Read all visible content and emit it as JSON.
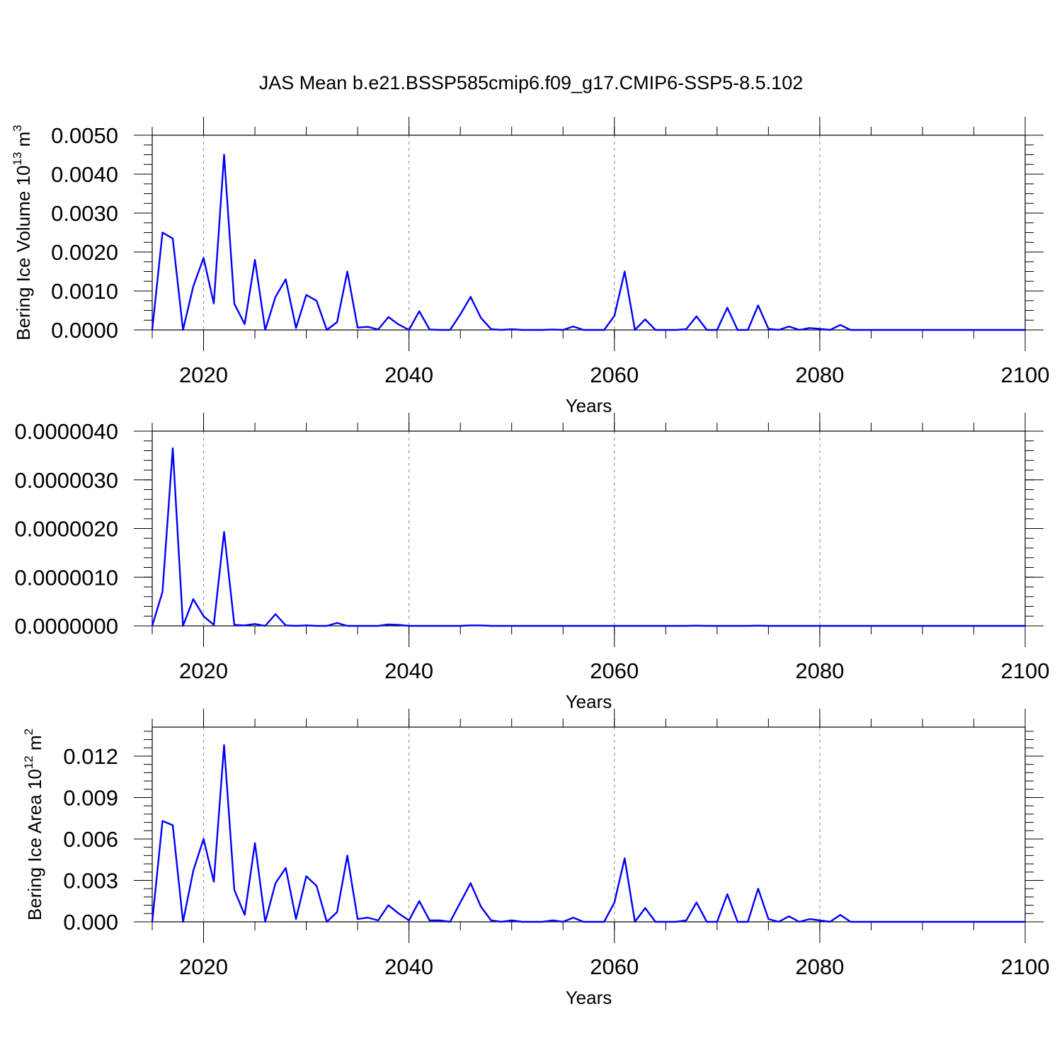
{
  "figure": {
    "title": "JAS Mean b.e21.BSSP585cmip6.f09_g17.CMIP6-SSP5-8.5.102"
  },
  "chart_data": [
    {
      "type": "line",
      "title": "JAS Mean b.e21.BSSP585cmip6.f09_g17.CMIP6-SSP5-8.5.102",
      "xlabel": "Years",
      "ylabel": "Bering Ice Volume 10",
      "ylabel_exp": "13",
      "ylabel_unit": "m",
      "ylabel_unit_exp": "3",
      "xlim": [
        2015,
        2100
      ],
      "ylim": [
        0,
        0.005
      ],
      "x_ticks": [
        2020,
        2040,
        2060,
        2080,
        2100
      ],
      "y_ticks": [
        0,
        0.001,
        0.002,
        0.003,
        0.004,
        0.005
      ],
      "y_tick_labels": [
        "0.0000",
        "0.0010",
        "0.0020",
        "0.0030",
        "0.0040",
        "0.0050"
      ],
      "grid": "vertical dashed lines at major x ticks",
      "line_color": "#0000ff",
      "x": [
        2015,
        2016,
        2017,
        2018,
        2019,
        2020,
        2021,
        2022,
        2023,
        2024,
        2025,
        2026,
        2027,
        2028,
        2029,
        2030,
        2031,
        2032,
        2033,
        2034,
        2035,
        2036,
        2037,
        2038,
        2039,
        2040,
        2041,
        2042,
        2043,
        2044,
        2045,
        2046,
        2047,
        2048,
        2049,
        2050,
        2051,
        2052,
        2053,
        2054,
        2055,
        2056,
        2057,
        2058,
        2059,
        2060,
        2061,
        2062,
        2063,
        2064,
        2065,
        2066,
        2067,
        2068,
        2069,
        2070,
        2071,
        2072,
        2073,
        2074,
        2075,
        2076,
        2077,
        2078,
        2079,
        2080,
        2081,
        2082,
        2083,
        2084,
        2085,
        2086,
        2087,
        2088,
        2089,
        2090,
        2091,
        2092,
        2093,
        2094,
        2095,
        2096,
        2097,
        2098,
        2099,
        2100
      ],
      "values": [
        0,
        0.0025,
        0.00235,
        0,
        0.00112,
        0.00185,
        0.00068,
        0.0045,
        0.00067,
        0.00015,
        0.0018,
        0,
        0.00085,
        0.0013,
        5e-05,
        0.0009,
        0.00075,
        0,
        0.0002,
        0.0015,
        6e-05,
        8e-05,
        1e-05,
        0.00033,
        0.00014,
        0,
        0.00048,
        1e-05,
        0,
        0,
        0.0004,
        0.00085,
        0.00031,
        2e-05,
        0,
        2e-05,
        0,
        0,
        0,
        1e-05,
        0,
        9e-05,
        0,
        0,
        0,
        0.00036,
        0.0015,
        0,
        0.00027,
        0,
        0,
        0,
        2e-05,
        0.00035,
        0,
        0,
        0.00057,
        0,
        0,
        0.00063,
        3e-05,
        0,
        9e-05,
        0,
        5e-05,
        3e-05,
        0,
        0.00013,
        0,
        0,
        0,
        0,
        0,
        0,
        0,
        0,
        0,
        0,
        0,
        0,
        0,
        0,
        0,
        0,
        0,
        0
      ]
    },
    {
      "type": "line",
      "xlabel": "Years",
      "xlim": [
        2015,
        2100
      ],
      "ylim": [
        0,
        4e-06
      ],
      "x_ticks": [
        2020,
        2040,
        2060,
        2080,
        2100
      ],
      "y_ticks": [
        0,
        1e-06,
        2e-06,
        3e-06,
        4e-06
      ],
      "y_tick_labels": [
        "0.0000000",
        "0.0000010",
        "0.0000020",
        "0.0000030",
        "0.0000040"
      ],
      "grid": "vertical dashed lines at major x ticks",
      "line_color": "#0000ff",
      "x": [
        2015,
        2016,
        2017,
        2018,
        2019,
        2020,
        2021,
        2022,
        2023,
        2024,
        2025,
        2026,
        2027,
        2028,
        2029,
        2030,
        2031,
        2032,
        2033,
        2034,
        2035,
        2036,
        2037,
        2038,
        2039,
        2040,
        2041,
        2042,
        2043,
        2044,
        2045,
        2046,
        2047,
        2048,
        2049,
        2050,
        2051,
        2052,
        2053,
        2054,
        2055,
        2056,
        2057,
        2058,
        2059,
        2060,
        2061,
        2062,
        2063,
        2064,
        2065,
        2066,
        2067,
        2068,
        2069,
        2070,
        2071,
        2072,
        2073,
        2074,
        2075,
        2076,
        2077,
        2078,
        2079,
        2080,
        2081,
        2082,
        2083,
        2084,
        2085,
        2086,
        2087,
        2088,
        2089,
        2090,
        2091,
        2092,
        2093,
        2094,
        2095,
        2096,
        2097,
        2098,
        2099,
        2100
      ],
      "values": [
        0,
        7e-07,
        3.65e-06,
        0,
        5.5e-07,
        2e-07,
        2e-08,
        1.93e-06,
        2e-08,
        1e-08,
        4e-08,
        0,
        2.4e-07,
        1e-08,
        0,
        1e-08,
        0,
        0,
        6e-08,
        0,
        0,
        0,
        0,
        3e-08,
        2e-08,
        0,
        0,
        0,
        0,
        0,
        0,
        1e-08,
        1e-08,
        0,
        0,
        0,
        0,
        0,
        0,
        0,
        0,
        0,
        0,
        0,
        0,
        0,
        0,
        0,
        0,
        0,
        0,
        0,
        0,
        5e-09,
        0,
        0,
        0,
        0,
        0,
        5e-09,
        0,
        0,
        0,
        0,
        0,
        0,
        0,
        0,
        0,
        0,
        0,
        0,
        0,
        0,
        0,
        0,
        0,
        0,
        0,
        0,
        0,
        0,
        0,
        0,
        0,
        0
      ]
    },
    {
      "type": "line",
      "xlabel": "Years",
      "ylabel": "Bering Ice Area 10",
      "ylabel_exp": "12",
      "ylabel_unit": "m",
      "ylabel_unit_exp": "2",
      "xlim": [
        2015,
        2100
      ],
      "ylim": [
        0,
        0.0141
      ],
      "x_ticks": [
        2020,
        2040,
        2060,
        2080,
        2100
      ],
      "y_ticks": [
        0,
        0.003,
        0.006,
        0.009,
        0.012
      ],
      "y_tick_labels": [
        "0.000",
        "0.003",
        "0.006",
        "0.009",
        "0.012"
      ],
      "grid": "vertical dashed lines at major x ticks",
      "line_color": "#0000ff",
      "x": [
        2015,
        2016,
        2017,
        2018,
        2019,
        2020,
        2021,
        2022,
        2023,
        2024,
        2025,
        2026,
        2027,
        2028,
        2029,
        2030,
        2031,
        2032,
        2033,
        2034,
        2035,
        2036,
        2037,
        2038,
        2039,
        2040,
        2041,
        2042,
        2043,
        2044,
        2045,
        2046,
        2047,
        2048,
        2049,
        2050,
        2051,
        2052,
        2053,
        2054,
        2055,
        2056,
        2057,
        2058,
        2059,
        2060,
        2061,
        2062,
        2063,
        2064,
        2065,
        2066,
        2067,
        2068,
        2069,
        2070,
        2071,
        2072,
        2073,
        2074,
        2075,
        2076,
        2077,
        2078,
        2079,
        2080,
        2081,
        2082,
        2083,
        2084,
        2085,
        2086,
        2087,
        2088,
        2089,
        2090,
        2091,
        2092,
        2093,
        2094,
        2095,
        2096,
        2097,
        2098,
        2099,
        2100
      ],
      "values": [
        0,
        0.0073,
        0.007,
        0,
        0.0037,
        0.006,
        0.0029,
        0.0128,
        0.0023,
        0.0005,
        0.0057,
        0,
        0.0028,
        0.0039,
        0.0002,
        0.0033,
        0.0026,
        0,
        0.0007,
        0.0048,
        0.0002,
        0.0003,
        0.0001,
        0.0012,
        0.0006,
        0.0001,
        0.0015,
        0.0001,
        0.0001,
        0,
        0.0014,
        0.0028,
        0.0011,
        0.0001,
        0,
        0.0001,
        0,
        0,
        0,
        0.0001,
        0,
        0.0003,
        0,
        0,
        0,
        0.0014,
        0.0046,
        0,
        0.001,
        0,
        0,
        0,
        0.0001,
        0.0014,
        0,
        0,
        0.002,
        0,
        0,
        0.0024,
        0.0002,
        0,
        0.0004,
        0,
        0.0002,
        0.0001,
        0,
        0.0005,
        0,
        0,
        0,
        0,
        0,
        0,
        0,
        0,
        0,
        0,
        0,
        0,
        0,
        0,
        0,
        0,
        0,
        0
      ]
    }
  ]
}
